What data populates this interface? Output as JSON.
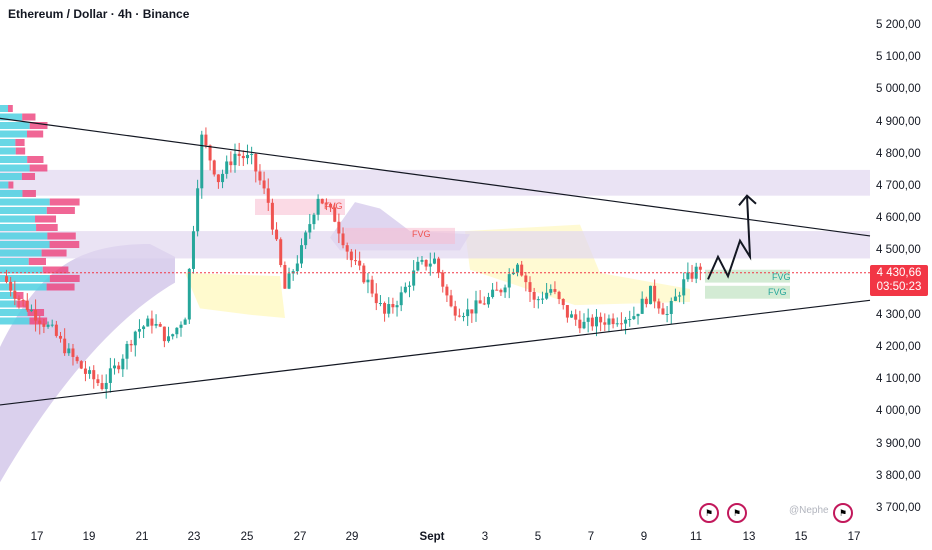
{
  "title": "Ethereum / Dollar · 4h · Binance",
  "price_label": "4 430,66",
  "timer_label": "03:50:23",
  "watermark": "@Nephe",
  "fvg_labels": [
    "FVG",
    "FVG",
    "FVG",
    "FVG"
  ],
  "colors": {
    "up": "#26a69a",
    "down": "#ef5350",
    "price_tag": "#f23645",
    "cloud": "#d1c4e9",
    "zone": "#fff59d",
    "band": "#e1d7f0"
  },
  "icons": [
    "us-flag-icon",
    "us-flag-icon",
    "us-flag-icon"
  ],
  "chart_data": {
    "type": "candlestick",
    "title": "Ethereum / Dollar · 4h · Binance",
    "x_ticks": [
      "17",
      "19",
      "21",
      "23",
      "25",
      "27",
      "29",
      "Sept",
      "3",
      "5",
      "7",
      "9",
      "11",
      "13",
      "15",
      "17"
    ],
    "y_ticks": [
      "5 200,00",
      "5 100,00",
      "5 000,00",
      "4 900,00",
      "4 800,00",
      "4 700,00",
      "4 600,00",
      "4 500,00",
      "4 400,00",
      "4 300,00",
      "4 200,00",
      "4 100,00",
      "4 000,00",
      "3 900,00",
      "3 800,00",
      "3 700,00"
    ],
    "y_range": [
      3650,
      5270
    ],
    "last_price": 4430.66,
    "grid": false,
    "close_path": [
      4420,
      4350,
      4300,
      4250,
      4180,
      4120,
      4080,
      4150,
      4250,
      4280,
      4220,
      4300,
      4850,
      4720,
      4800,
      4780,
      4650,
      4380,
      4500,
      4670,
      4600,
      4470,
      4400,
      4300,
      4360,
      4450,
      4470,
      4320,
      4310,
      4340,
      4380,
      4470,
      4340,
      4380,
      4300,
      4270,
      4280,
      4290,
      4300,
      4370,
      4300,
      4400,
      4450
    ]
  }
}
